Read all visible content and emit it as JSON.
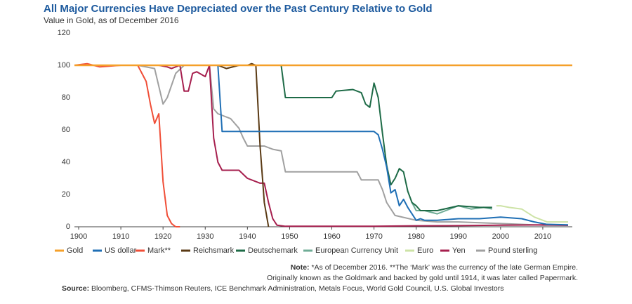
{
  "chart_data": {
    "type": "line",
    "title": "All Major Currencies Have Depreciated over the Past Century Relative to Gold",
    "subtitle": "Value in Gold, as of December 2016",
    "xlim": [
      1899,
      2017
    ],
    "xticks": [
      1900,
      1910,
      1920,
      1930,
      1940,
      1950,
      1960,
      1970,
      1980,
      1990,
      2000,
      2010
    ],
    "ylim": [
      0,
      120
    ],
    "yticks": [
      0,
      20,
      40,
      60,
      80,
      100,
      120
    ],
    "legend": "bottom",
    "series": [
      {
        "name": "Gold",
        "color": "#f5a02a",
        "x": [
          1899,
          2017
        ],
        "values": [
          100,
          100
        ]
      },
      {
        "name": "US dollar",
        "color": "#1f6fb5",
        "x": [
          1899,
          1933,
          1934,
          1970,
          1971,
          1972,
          1973,
          1974,
          1975,
          1976,
          1977,
          1978,
          1979,
          1980,
          1981,
          1982,
          1985,
          1990,
          1995,
          2000,
          2005,
          2008,
          2011,
          2016
        ],
        "values": [
          100,
          100,
          59,
          59,
          57,
          48,
          37,
          21,
          23,
          13,
          17,
          12,
          8,
          4,
          5,
          4,
          4,
          5,
          5,
          6,
          5,
          3,
          1.5,
          1.2
        ]
      },
      {
        "name": "Mark**",
        "color": "#f04e37",
        "x": [
          1899,
          1902,
          1905,
          1910,
          1914,
          1916,
          1917,
          1918,
          1919,
          1920,
          1921,
          1922,
          1923,
          1924
        ],
        "values": [
          100,
          101,
          99,
          100,
          100,
          90,
          76,
          64,
          70,
          28,
          7,
          2,
          0,
          0
        ]
      },
      {
        "name": "Reichsmark",
        "color": "#5a3a14",
        "x": [
          1933,
          1935,
          1938,
          1940,
          1941,
          1942,
          1943,
          1944,
          1945
        ],
        "values": [
          100,
          98,
          100,
          100,
          101,
          100,
          50,
          15,
          0
        ]
      },
      {
        "name": "Deutschemark",
        "color": "#1e6b47",
        "x": [
          1948,
          1949,
          1960,
          1961,
          1965,
          1967,
          1968,
          1969,
          1970,
          1971,
          1972,
          1973,
          1974,
          1975,
          1976,
          1977,
          1978,
          1979,
          1980,
          1981,
          1985,
          1990,
          1995,
          1998
        ],
        "values": [
          100,
          80,
          80,
          84,
          85,
          83,
          76,
          74,
          89,
          80,
          58,
          38,
          26,
          30,
          36,
          34,
          22,
          15,
          13,
          10,
          10,
          13,
          12,
          12
        ]
      },
      {
        "name": "European Currency Unit",
        "color": "#6fac96",
        "x": [
          1979,
          1980,
          1982,
          1985,
          1987,
          1990,
          1993,
          1996,
          1998
        ],
        "values": [
          15,
          10,
          10,
          8,
          10,
          13,
          11,
          12,
          11
        ]
      },
      {
        "name": "Euro",
        "color": "#cde3a6",
        "x": [
          1999,
          2000,
          2002,
          2005,
          2008,
          2011,
          2014,
          2016
        ],
        "values": [
          13,
          13,
          12,
          11,
          6,
          3,
          3,
          3
        ]
      },
      {
        "name": "Yen",
        "color": "#a61f4e",
        "x": [
          1899,
          1919,
          1921,
          1922,
          1924,
          1925,
          1926,
          1927,
          1928,
          1930,
          1931,
          1932,
          1933,
          1934,
          1938,
          1940,
          1943,
          1944,
          1945,
          1946,
          1947,
          1949,
          1970,
          1980,
          1990,
          2000,
          2010,
          2016
        ],
        "values": [
          100,
          100,
          99,
          98,
          100,
          84,
          84,
          95,
          96,
          93,
          100,
          55,
          40,
          35,
          35,
          30,
          27,
          27,
          15,
          5,
          1,
          0.3,
          0.3,
          0.6,
          0.7,
          1,
          1.2,
          0.9
        ]
      },
      {
        "name": "Pound sterling",
        "color": "#a0a0a0",
        "x": [
          1899,
          1914,
          1918,
          1920,
          1921,
          1923,
          1925,
          1931,
          1932,
          1933,
          1936,
          1938,
          1939,
          1940,
          1944,
          1946,
          1948,
          1949,
          1966,
          1967,
          1971,
          1972,
          1973,
          1975,
          1980,
          1985,
          1990,
          2000,
          2010,
          2016
        ],
        "values": [
          100,
          100,
          98,
          76,
          80,
          95,
          100,
          100,
          73,
          70,
          67,
          61,
          55,
          50,
          50,
          48,
          47,
          34,
          34,
          29,
          29,
          23,
          15,
          7,
          4,
          3,
          3,
          2,
          1,
          1
        ]
      }
    ],
    "note": {
      "label": "Note:",
      "lines": [
        "*As of December 2016. **The ‘Mark’ was the currency of the late German Empire.",
        "Originally known as the Goldmark and backed by gold until 1914, it was later called Papermark."
      ]
    },
    "source": {
      "label": "Source:",
      "text": "Bloomberg, CFMS-Thimson Reuters, ICE Benchmark Administration, Metals Focus, World Gold Council, U.S. Global Investors"
    }
  }
}
